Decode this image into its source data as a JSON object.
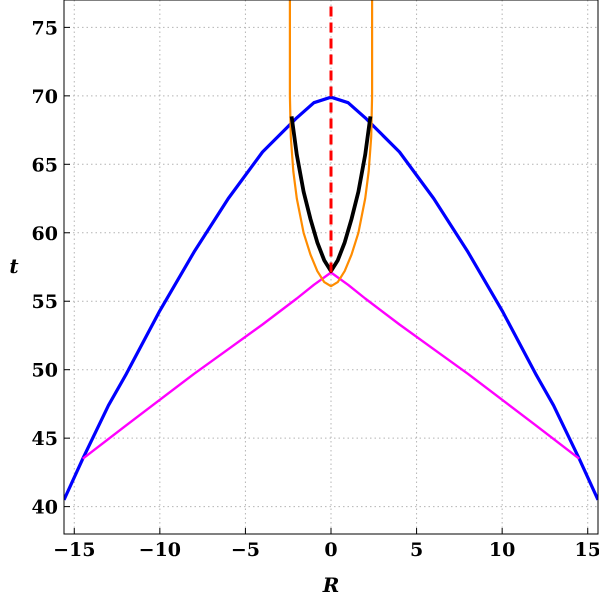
{
  "chart_data": {
    "type": "line",
    "title": "",
    "xlabel": "R",
    "ylabel": "t",
    "xlim": [
      -15.6,
      15.6
    ],
    "ylim": [
      38,
      77
    ],
    "grid": true,
    "x_ticks": [
      -15,
      -10,
      -5,
      0,
      5,
      10,
      15
    ],
    "x_tick_labels": [
      "−15",
      "−10",
      "−5",
      "0",
      "5",
      "10",
      "15"
    ],
    "y_ticks": [
      40,
      45,
      50,
      55,
      60,
      65,
      70,
      75
    ],
    "y_tick_labels": [
      "40",
      "45",
      "50",
      "55",
      "60",
      "65",
      "70",
      "75"
    ],
    "series": [
      {
        "color": "#0000ff",
        "style": "solid",
        "x": [
          -15.6,
          -14.5,
          -13,
          -12,
          -10,
          -8,
          -6,
          -4,
          -2,
          -1,
          0,
          1,
          2,
          4,
          6,
          8,
          10,
          12,
          13,
          14.5,
          15.6
        ],
        "y": [
          40.5,
          43.5,
          47.4,
          49.6,
          54.3,
          58.6,
          62.5,
          65.9,
          68.4,
          69.5,
          69.9,
          69.5,
          68.4,
          65.9,
          62.5,
          58.6,
          54.3,
          49.6,
          47.4,
          43.5,
          40.5
        ]
      },
      {
        "color": "#ff00ff",
        "style": "solid",
        "x": [
          -14.5,
          -12,
          -10,
          -8,
          -6,
          -4,
          -2,
          -1,
          0,
          1,
          2,
          4,
          6,
          8,
          10,
          12,
          14.5
        ],
        "y": [
          43.5,
          45.9,
          47.8,
          49.7,
          51.5,
          53.3,
          55.2,
          56.2,
          57.1,
          56.2,
          55.2,
          53.3,
          51.5,
          49.7,
          47.8,
          45.9,
          43.5
        ]
      },
      {
        "color": "#ff8c00",
        "style": "solid",
        "x": [
          -2.4,
          -2.4,
          -2.35,
          -2.2,
          -2,
          -1.6,
          -1.2,
          -0.8,
          -0.4,
          0,
          0.4,
          0.8,
          1.2,
          1.6,
          2,
          2.2,
          2.35,
          2.4,
          2.4
        ],
        "y": [
          77,
          70,
          67,
          64.5,
          62.5,
          60,
          58.4,
          57.2,
          56.4,
          56.1,
          56.4,
          57.2,
          58.4,
          60,
          62.5,
          64.5,
          67,
          70,
          77
        ]
      },
      {
        "color": "#000000",
        "style": "solid",
        "x": [
          -2.3,
          -2,
          -1.6,
          -1.2,
          -0.8,
          -0.4,
          0,
          0.4,
          0.8,
          1.2,
          1.6,
          2,
          2.3
        ],
        "y": [
          68.5,
          65.7,
          63,
          61,
          59.3,
          58,
          57.2,
          58,
          59.3,
          61,
          63,
          65.7,
          68.5
        ]
      },
      {
        "color": "#ff0000",
        "style": "dashed",
        "x": [
          0,
          0
        ],
        "y": [
          57.1,
          77
        ]
      }
    ]
  }
}
